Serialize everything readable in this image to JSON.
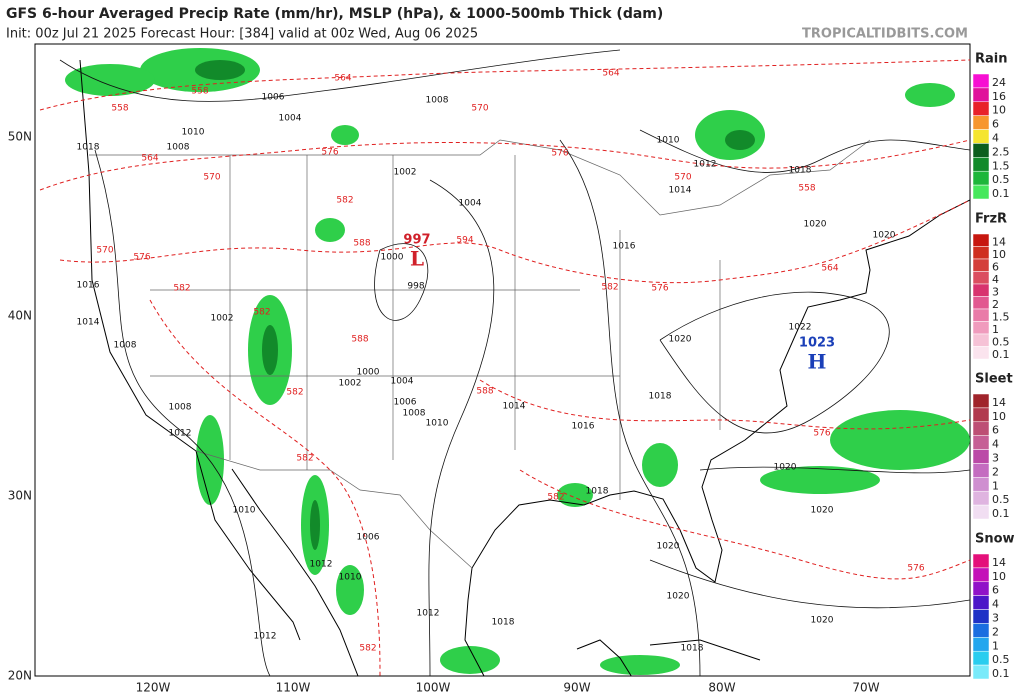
{
  "header": {
    "title": "GFS 6-hour Averaged Precip Rate (mm/hr), MSLP (hPa), & 1000-500mb Thick (dam)",
    "subtitle": "Init: 00z Jul 21 2025   Forecast Hour: [384]   valid at 00z Wed, Aug 06 2025",
    "watermark": "TROPICALTIDBITS.COM"
  },
  "map": {
    "lon_labels": [
      "120W",
      "110W",
      "100W",
      "90W",
      "80W",
      "70W"
    ],
    "lat_labels": [
      "50N",
      "40N",
      "30N",
      "20N"
    ],
    "isobar_labels": [
      1006,
      1008,
      1004,
      1010,
      1008,
      1018,
      1010,
      1012,
      1014,
      1018,
      1002,
      1004,
      1000,
      998,
      1002,
      1014,
      1008,
      1000,
      1002,
      1004,
      1006,
      1008,
      1010,
      1014,
      1016,
      1018,
      1020,
      1022,
      1020,
      1020,
      1020,
      1020,
      1020,
      1018,
      1018,
      1012,
      1012,
      1010,
      1006,
      1012,
      1010,
      1012,
      1008,
      1016,
      1016,
      1018,
      1020,
      1020
    ],
    "thickness_labels": [
      564,
      564,
      558,
      558,
      570,
      576,
      564,
      570,
      576,
      582,
      570,
      576,
      582,
      588,
      594,
      570,
      558,
      564,
      582,
      576,
      588,
      588,
      582,
      582,
      576,
      576,
      582,
      582,
      582
    ],
    "lows": [
      {
        "value": 997,
        "symbol": "L"
      }
    ],
    "highs": [
      {
        "value": 1023,
        "symbol": "H"
      }
    ]
  },
  "legend": [
    {
      "title": "Rain",
      "levels": [
        24,
        16,
        10,
        6,
        4,
        2.5,
        1.5,
        0.5,
        0.1
      ],
      "colors": [
        "#f70fd2",
        "#e0119b",
        "#e8212a",
        "#f7962d",
        "#f5e52f",
        "#0c5e1d",
        "#128a2a",
        "#1db63a",
        "#46e85c"
      ]
    },
    {
      "title": "FrzR",
      "levels": [
        14,
        10,
        6,
        4,
        3,
        2,
        1.5,
        1,
        0.5,
        0.1
      ],
      "colors": [
        "#c7170f",
        "#cf2f1f",
        "#d43f3a",
        "#db4e60",
        "#d8336e",
        "#e25890",
        "#e97ba8",
        "#f09bbd",
        "#f6c2d6",
        "#fbe4ee"
      ]
    },
    {
      "title": "Sleet",
      "levels": [
        14,
        10,
        6,
        4,
        3,
        2,
        1,
        0.5,
        0.1
      ],
      "colors": [
        "#a0242b",
        "#b13a4e",
        "#bd4f74",
        "#c65f95",
        "#bb4aa7",
        "#c46cc0",
        "#cf8fd0",
        "#dfb4e0",
        "#f1def2"
      ]
    },
    {
      "title": "Snow",
      "levels": [
        14,
        10,
        6,
        4,
        3,
        2,
        1,
        0.5,
        0.1
      ],
      "colors": [
        "#e4107a",
        "#c412b8",
        "#9012c8",
        "#4c17c8",
        "#1f32c6",
        "#1a6ee0",
        "#23a6ee",
        "#29cdef",
        "#79eafa"
      ]
    }
  ]
}
